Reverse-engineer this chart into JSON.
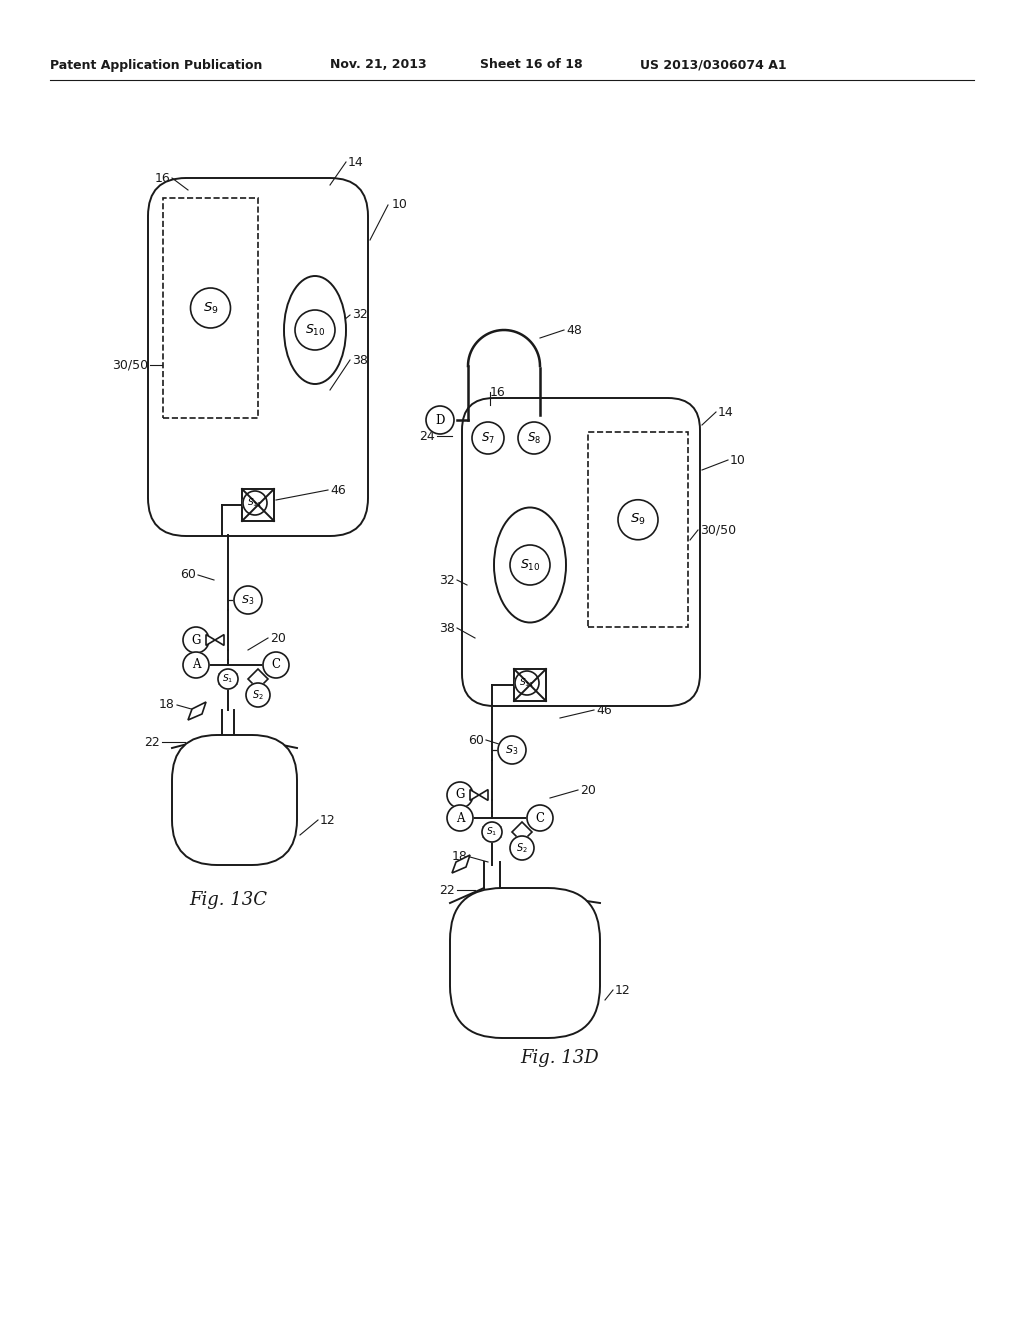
{
  "bg_color": "#ffffff",
  "line_color": "#1a1a1a",
  "header_line1": "Patent Application Publication",
  "header_line2": "Nov. 21, 2013",
  "header_line3": "Sheet 16 of 18",
  "header_line4": "US 2013/0306074 A1",
  "fig13c_label": "Fig. 13C",
  "fig13d_label": "Fig. 13D"
}
